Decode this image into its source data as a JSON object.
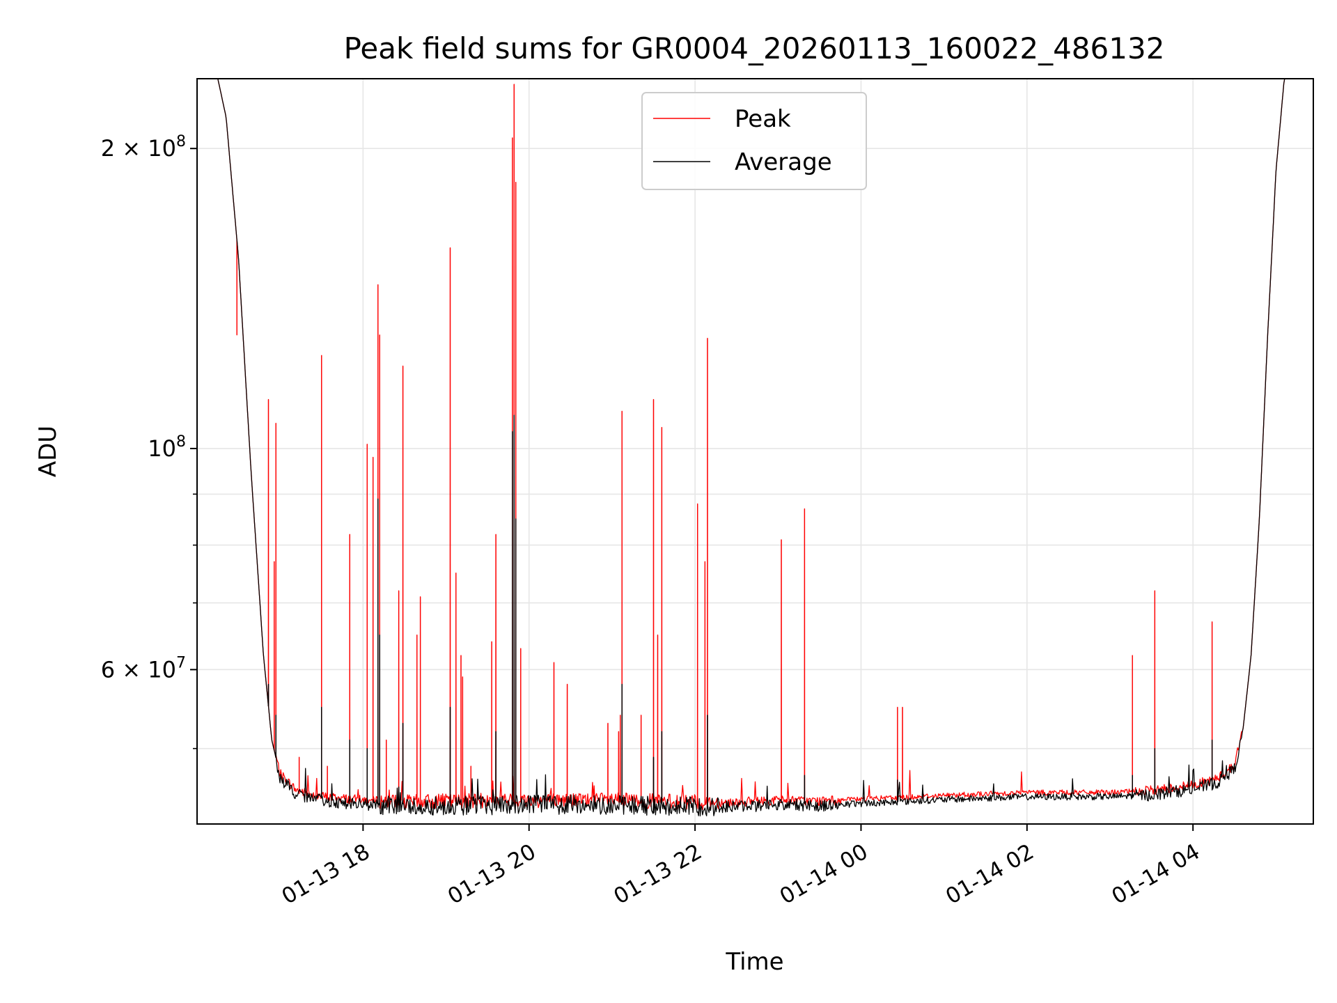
{
  "chart_data": {
    "type": "line",
    "title": "Peak field sums for GR0004_20260113_160022_486132",
    "xlabel": "Time",
    "ylabel": "ADU",
    "yscale": "log",
    "grid": true,
    "legend_position": "top-center",
    "x_axis": {
      "unit": "hours since 2026-01-13 00:00",
      "xlim": [
        16.0,
        29.45
      ]
    },
    "ylim": [
      42000000,
      235000000
    ],
    "x_ticks": [
      {
        "value": 18,
        "label": "01-13 18"
      },
      {
        "value": 20,
        "label": "01-13 20"
      },
      {
        "value": 22,
        "label": "01-13 22"
      },
      {
        "value": 24,
        "label": "01-14 00"
      },
      {
        "value": 26,
        "label": "01-14 02"
      },
      {
        "value": 28,
        "label": "01-14 04"
      }
    ],
    "y_ticks_major": [
      {
        "value": 200000000,
        "base": "2 × 10",
        "exp": "8"
      },
      {
        "value": 100000000,
        "base": "10",
        "exp": "8"
      },
      {
        "value": 60000000,
        "base": "6 × 10",
        "exp": "7"
      }
    ],
    "y_ticks_minor": [
      50000000,
      70000000,
      80000000,
      90000000
    ],
    "baseline": [
      [
        16.0,
        235000000
      ],
      [
        16.25,
        235000000
      ],
      [
        16.35,
        215000000
      ],
      [
        16.5,
        155000000
      ],
      [
        16.65,
        95000000
      ],
      [
        16.8,
        62000000
      ],
      [
        16.9,
        51000000
      ],
      [
        17.0,
        47000000
      ],
      [
        17.2,
        45200000
      ],
      [
        17.5,
        44600000
      ],
      [
        18.0,
        44200000
      ],
      [
        18.5,
        44000000
      ],
      [
        19.0,
        44100000
      ],
      [
        20.0,
        44200000
      ],
      [
        21.0,
        44200000
      ],
      [
        22.0,
        44000000
      ],
      [
        22.5,
        44000000
      ],
      [
        23.0,
        44200000
      ],
      [
        23.5,
        44100000
      ],
      [
        24.0,
        44300000
      ],
      [
        25.0,
        44700000
      ],
      [
        26.0,
        45000000
      ],
      [
        27.0,
        45000000
      ],
      [
        27.5,
        45200000
      ],
      [
        28.0,
        45800000
      ],
      [
        28.3,
        46500000
      ],
      [
        28.5,
        48000000
      ],
      [
        28.6,
        52000000
      ],
      [
        28.7,
        62000000
      ],
      [
        28.8,
        85000000
      ],
      [
        28.9,
        130000000
      ],
      [
        29.0,
        190000000
      ],
      [
        29.1,
        235000000
      ],
      [
        29.45,
        235000000
      ]
    ],
    "series": [
      {
        "name": "Peak",
        "color": "#ff0000",
        "spikes": [
          [
            16.48,
            130000000
          ],
          [
            16.86,
            112000000
          ],
          [
            16.93,
            77000000
          ],
          [
            16.95,
            106000000
          ],
          [
            17.23,
            49000000
          ],
          [
            17.5,
            124000000
          ],
          [
            17.57,
            48000000
          ],
          [
            17.84,
            82000000
          ],
          [
            18.05,
            101000000
          ],
          [
            18.12,
            98000000
          ],
          [
            18.18,
            146000000
          ],
          [
            18.2,
            130000000
          ],
          [
            18.28,
            51000000
          ],
          [
            18.43,
            72000000
          ],
          [
            18.48,
            121000000
          ],
          [
            18.65,
            65000000
          ],
          [
            18.69,
            71000000
          ],
          [
            19.05,
            159000000
          ],
          [
            19.12,
            75000000
          ],
          [
            19.18,
            62000000
          ],
          [
            19.2,
            59000000
          ],
          [
            19.3,
            48000000
          ],
          [
            19.55,
            64000000
          ],
          [
            19.6,
            82000000
          ],
          [
            19.8,
            205000000
          ],
          [
            19.82,
            232000000
          ],
          [
            19.84,
            185000000
          ],
          [
            19.9,
            63000000
          ],
          [
            20.3,
            61000000
          ],
          [
            20.46,
            58000000
          ],
          [
            20.95,
            53000000
          ],
          [
            21.08,
            52000000
          ],
          [
            21.1,
            54000000
          ],
          [
            21.12,
            109000000
          ],
          [
            21.35,
            54000000
          ],
          [
            21.5,
            112000000
          ],
          [
            21.55,
            65000000
          ],
          [
            21.6,
            105000000
          ],
          [
            22.03,
            88000000
          ],
          [
            22.12,
            77000000
          ],
          [
            22.15,
            129000000
          ],
          [
            23.04,
            81000000
          ],
          [
            23.32,
            87000000
          ],
          [
            24.44,
            55000000
          ],
          [
            24.5,
            55000000
          ],
          [
            27.27,
            62000000
          ],
          [
            27.54,
            72000000
          ],
          [
            28.23,
            67000000
          ]
        ]
      },
      {
        "name": "Average",
        "color": "#000000",
        "spikes": [
          [
            16.86,
            58000000
          ],
          [
            16.95,
            54000000
          ],
          [
            17.5,
            55000000
          ],
          [
            17.84,
            51000000
          ],
          [
            18.05,
            50000000
          ],
          [
            18.18,
            89000000
          ],
          [
            18.2,
            65000000
          ],
          [
            18.48,
            53000000
          ],
          [
            19.05,
            55000000
          ],
          [
            19.6,
            52000000
          ],
          [
            19.8,
            104000000
          ],
          [
            19.82,
            108000000
          ],
          [
            19.84,
            85000000
          ],
          [
            21.12,
            58000000
          ],
          [
            21.5,
            49000000
          ],
          [
            21.6,
            52000000
          ],
          [
            22.15,
            54000000
          ],
          [
            23.32,
            47000000
          ],
          [
            24.44,
            46500000
          ],
          [
            27.27,
            47000000
          ],
          [
            27.54,
            50000000
          ],
          [
            28.23,
            51000000
          ]
        ]
      }
    ]
  }
}
